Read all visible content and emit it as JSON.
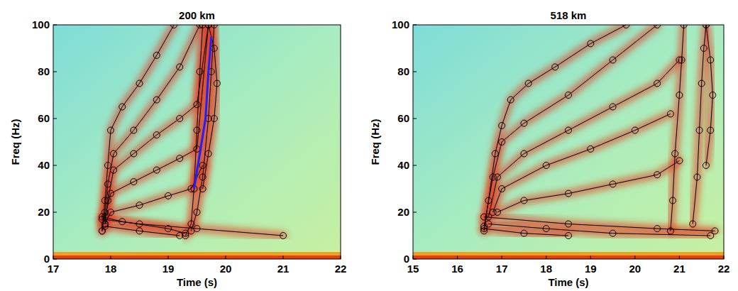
{
  "chart_data": [
    {
      "type": "line",
      "title": "200 km",
      "x_label": "Time (s)",
      "y_label": "Freq (Hz)",
      "xlim": [
        17,
        22
      ],
      "ylim": [
        0,
        100
      ],
      "xticks": [
        17,
        18,
        19,
        20,
        21,
        22
      ],
      "yticks": [
        0,
        20,
        40,
        60,
        80,
        100
      ],
      "grid": false,
      "series": [
        {
          "x": [
            17.85,
            17.9,
            17.95,
            18.0,
            18.2,
            18.5,
            18.8,
            19.1
          ],
          "values": [
            12,
            25,
            40,
            55,
            65,
            75,
            87,
            100
          ],
          "color": "#000000",
          "marker": "circle",
          "line_style": "solid"
        },
        {
          "x": [
            17.85,
            17.9,
            17.95,
            18.05,
            18.4,
            18.8,
            19.2,
            19.55
          ],
          "values": [
            12,
            20,
            32,
            45,
            55,
            68,
            82,
            100
          ],
          "color": "#000000",
          "marker": "circle",
          "line_style": "solid"
        },
        {
          "x": [
            17.9,
            17.95,
            18.05,
            18.4,
            18.8,
            19.2,
            19.5,
            19.7
          ],
          "values": [
            15,
            25,
            38,
            45,
            53,
            60,
            66,
            100
          ],
          "color": "#000000",
          "marker": "circle",
          "line_style": "solid"
        },
        {
          "x": [
            17.9,
            18.0,
            18.4,
            18.8,
            19.2,
            19.5,
            19.7
          ],
          "values": [
            18,
            28,
            33,
            38,
            43,
            47,
            100
          ],
          "color": "#000000",
          "marker": "circle",
          "line_style": "solid"
        },
        {
          "x": [
            17.9,
            18.0,
            18.5,
            19.0,
            19.4,
            19.6
          ],
          "values": [
            15,
            20,
            23,
            27,
            30,
            40
          ],
          "color": "#000000",
          "marker": "circle",
          "line_style": "solid"
        },
        {
          "x": [
            19.3,
            19.4,
            19.45,
            19.5,
            19.55,
            19.6
          ],
          "values": [
            10,
            15,
            30,
            55,
            80,
            100
          ],
          "color": "#000000",
          "marker": "circle",
          "line_style": "solid"
        },
        {
          "x": [
            19.4,
            19.5,
            19.6,
            19.7,
            19.75,
            19.8
          ],
          "values": [
            12,
            20,
            35,
            60,
            80,
            100
          ],
          "color": "#000000",
          "marker": "circle",
          "line_style": "solid"
        },
        {
          "x": [
            19.6,
            19.7,
            19.8,
            19.85,
            19.8,
            19.7
          ],
          "values": [
            30,
            45,
            60,
            75,
            90,
            100
          ],
          "color": "#000000",
          "marker": "circle",
          "line_style": "solid"
        },
        {
          "x": [
            17.85,
            18.5,
            19.5,
            21.0
          ],
          "values": [
            17,
            15,
            13,
            10
          ],
          "color": "#000000",
          "marker": "circle",
          "line_style": "solid"
        },
        {
          "x": [
            17.9,
            18.5,
            19.2
          ],
          "values": [
            14,
            12,
            10
          ],
          "color": "#000000",
          "marker": "circle",
          "line_style": "solid"
        },
        {
          "x": [
            17.85,
            18.2,
            19.0,
            19.3
          ],
          "values": [
            18,
            16,
            13,
            11
          ],
          "color": "#000000",
          "marker": "circle",
          "line_style": "solid"
        },
        {
          "x": [
            19.45,
            19.55,
            19.65,
            19.7,
            19.75
          ],
          "values": [
            30,
            45,
            60,
            80,
            95
          ],
          "color": "#2020ff",
          "marker": "none",
          "line_style": "solid"
        }
      ]
    },
    {
      "type": "line",
      "title": "518 km",
      "x_label": "Time (s)",
      "y_label": "Freq (Hz)",
      "xlim": [
        15,
        22
      ],
      "ylim": [
        0,
        100
      ],
      "xticks": [
        15,
        16,
        17,
        18,
        19,
        20,
        21,
        22
      ],
      "yticks": [
        0,
        20,
        40,
        60,
        80,
        100
      ],
      "grid": false,
      "series": [
        {
          "x": [
            16.6,
            16.7,
            16.85,
            17.0,
            17.2,
            17.6,
            18.2,
            19.0,
            19.8
          ],
          "values": [
            12,
            25,
            45,
            57,
            68,
            75,
            82,
            92,
            100
          ],
          "color": "#000000",
          "marker": "circle",
          "line_style": "solid"
        },
        {
          "x": [
            16.6,
            16.8,
            17.0,
            17.5,
            18.5,
            19.5,
            20.5
          ],
          "values": [
            14,
            35,
            50,
            58,
            70,
            85,
            100
          ],
          "color": "#000000",
          "marker": "circle",
          "line_style": "solid"
        },
        {
          "x": [
            16.7,
            16.9,
            17.5,
            18.5,
            19.5,
            20.5,
            21.0
          ],
          "values": [
            18,
            35,
            45,
            55,
            65,
            75,
            85
          ],
          "color": "#000000",
          "marker": "circle",
          "line_style": "solid"
        },
        {
          "x": [
            16.8,
            17.0,
            18.0,
            19.0,
            20.0,
            20.8
          ],
          "values": [
            20,
            30,
            40,
            47,
            55,
            62
          ],
          "color": "#000000",
          "marker": "circle",
          "line_style": "solid"
        },
        {
          "x": [
            16.9,
            17.5,
            18.5,
            19.5,
            20.5,
            21.0
          ],
          "values": [
            20,
            25,
            28,
            32,
            36,
            42
          ],
          "color": "#000000",
          "marker": "circle",
          "line_style": "solid"
        },
        {
          "x": [
            20.8,
            20.85,
            20.9,
            21.0,
            21.05,
            21.1
          ],
          "values": [
            12,
            25,
            45,
            70,
            85,
            100
          ],
          "color": "#000000",
          "marker": "circle",
          "line_style": "solid"
        },
        {
          "x": [
            21.3,
            21.4,
            21.45,
            21.5,
            21.55,
            21.6
          ],
          "values": [
            15,
            35,
            55,
            75,
            90,
            100
          ],
          "color": "#000000",
          "marker": "circle",
          "line_style": "solid"
        },
        {
          "x": [
            21.6,
            21.7,
            21.75,
            21.7,
            21.6
          ],
          "values": [
            40,
            55,
            70,
            85,
            100
          ],
          "color": "#000000",
          "marker": "circle",
          "line_style": "solid"
        },
        {
          "x": [
            16.6,
            18.5,
            20.5,
            21.8
          ],
          "values": [
            18,
            15,
            13,
            12
          ],
          "color": "#000000",
          "marker": "circle",
          "line_style": "solid"
        },
        {
          "x": [
            16.7,
            18.0,
            19.5,
            21.7
          ],
          "values": [
            15,
            13,
            11,
            10
          ],
          "color": "#000000",
          "marker": "circle",
          "line_style": "solid"
        },
        {
          "x": [
            16.6,
            17.5,
            18.5
          ],
          "values": [
            13,
            11,
            10
          ],
          "color": "#000000",
          "marker": "circle",
          "line_style": "solid"
        }
      ]
    }
  ]
}
